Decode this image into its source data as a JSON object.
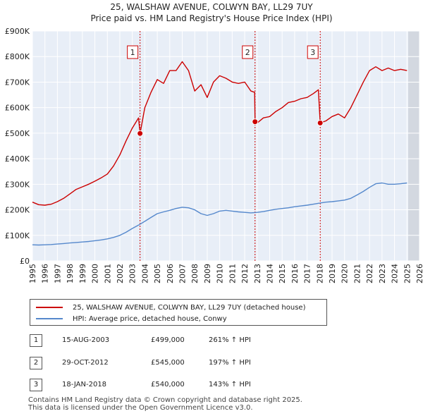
{
  "title": {
    "line1": "25, WALSHAW AVENUE, COLWYN BAY, LL29 7UY",
    "line2": "Price paid vs. HM Land Registry's House Price Index (HPI)"
  },
  "colors": {
    "property": "#cc0000",
    "hpi": "#5588cc",
    "shade": "#dce7f5",
    "grid": "#ffffff",
    "bg": "#e8eef7"
  },
  "chart_data": {
    "type": "line",
    "title": "Price paid vs. HM Land Registry's House Price Index (HPI)",
    "xlabel": "",
    "ylabel": "",
    "xlim": [
      1995,
      2026
    ],
    "ylim": [
      0,
      900000
    ],
    "x_ticks": [
      "1995",
      "1996",
      "1997",
      "1998",
      "1999",
      "2000",
      "2001",
      "2002",
      "2003",
      "2004",
      "2005",
      "2006",
      "2007",
      "2008",
      "2009",
      "2010",
      "2011",
      "2012",
      "2013",
      "2014",
      "2015",
      "2016",
      "2017",
      "2018",
      "2019",
      "2020",
      "2021",
      "2022",
      "2023",
      "2024",
      "2025",
      "2026"
    ],
    "y_ticks": [
      {
        "value": 0,
        "label": "£0"
      },
      {
        "value": 100000,
        "label": "£100K"
      },
      {
        "value": 200000,
        "label": "£200K"
      },
      {
        "value": 300000,
        "label": "£300K"
      },
      {
        "value": 400000,
        "label": "£400K"
      },
      {
        "value": 500000,
        "label": "£500K"
      },
      {
        "value": 600000,
        "label": "£600K"
      },
      {
        "value": 700000,
        "label": "£700K"
      },
      {
        "value": 800000,
        "label": "£800K"
      },
      {
        "value": 900000,
        "label": "£900K"
      }
    ],
    "forecast_start": 2025.1,
    "series": [
      {
        "name": "25, WALSHAW AVENUE, COLWYN BAY, LL29 7UY (detached house)",
        "color": "#cc0000",
        "x": [
          1995.0,
          1995.5,
          1996.0,
          1996.5,
          1997.0,
          1997.5,
          1998.0,
          1998.5,
          1999.0,
          1999.5,
          2000.0,
          2000.5,
          2001.0,
          2001.5,
          2002.0,
          2002.5,
          2003.0,
          2003.5,
          2003.62,
          2004.0,
          2004.5,
          2005.0,
          2005.5,
          2006.0,
          2006.5,
          2007.0,
          2007.5,
          2008.0,
          2008.5,
          2009.0,
          2009.5,
          2010.0,
          2010.5,
          2011.0,
          2011.5,
          2012.0,
          2012.5,
          2012.8,
          2012.83,
          2013.0,
          2013.5,
          2014.0,
          2014.5,
          2015.0,
          2015.5,
          2016.0,
          2016.5,
          2017.0,
          2017.5,
          2017.9,
          2018.05,
          2018.5,
          2019.0,
          2019.5,
          2020.0,
          2020.5,
          2021.0,
          2021.5,
          2022.0,
          2022.5,
          2023.0,
          2023.5,
          2024.0,
          2024.5,
          2025.0
        ],
        "values": [
          230000,
          220000,
          218000,
          222000,
          232000,
          245000,
          262000,
          280000,
          290000,
          300000,
          312000,
          325000,
          340000,
          372000,
          415000,
          470000,
          520000,
          560000,
          499000,
          600000,
          660000,
          710000,
          695000,
          745000,
          745000,
          780000,
          745000,
          665000,
          690000,
          640000,
          700000,
          725000,
          715000,
          700000,
          695000,
          700000,
          665000,
          660000,
          545000,
          540000,
          560000,
          565000,
          585000,
          600000,
          620000,
          625000,
          635000,
          640000,
          655000,
          670000,
          540000,
          548000,
          565000,
          575000,
          560000,
          600000,
          650000,
          700000,
          745000,
          760000,
          745000,
          755000,
          745000,
          750000,
          745000
        ]
      },
      {
        "name": "HPI: Average price, detached house, Conwy",
        "color": "#5588cc",
        "x": [
          1995.0,
          1995.5,
          1996.0,
          1996.5,
          1997.0,
          1997.5,
          1998.0,
          1998.5,
          1999.0,
          1999.5,
          2000.0,
          2000.5,
          2001.0,
          2001.5,
          2002.0,
          2002.5,
          2003.0,
          2003.5,
          2004.0,
          2004.5,
          2005.0,
          2005.5,
          2006.0,
          2006.5,
          2007.0,
          2007.5,
          2008.0,
          2008.5,
          2009.0,
          2009.5,
          2010.0,
          2010.5,
          2011.0,
          2011.5,
          2012.0,
          2012.5,
          2013.0,
          2013.5,
          2014.0,
          2014.5,
          2015.0,
          2015.5,
          2016.0,
          2016.5,
          2017.0,
          2017.5,
          2018.0,
          2018.5,
          2019.0,
          2019.5,
          2020.0,
          2020.5,
          2021.0,
          2021.5,
          2022.0,
          2022.5,
          2023.0,
          2023.5,
          2024.0,
          2024.5,
          2025.0
        ],
        "values": [
          63000,
          62000,
          63000,
          64000,
          66000,
          68000,
          70000,
          72000,
          74000,
          76000,
          79000,
          82000,
          86000,
          92000,
          100000,
          112000,
          127000,
          140000,
          155000,
          170000,
          185000,
          192000,
          198000,
          205000,
          210000,
          208000,
          200000,
          185000,
          178000,
          185000,
          195000,
          198000,
          195000,
          192000,
          190000,
          188000,
          190000,
          193000,
          198000,
          202000,
          205000,
          208000,
          212000,
          215000,
          218000,
          222000,
          226000,
          230000,
          232000,
          235000,
          238000,
          245000,
          258000,
          272000,
          288000,
          302000,
          305000,
          300000,
          300000,
          302000,
          305000
        ]
      }
    ],
    "sales": [
      {
        "label": "1",
        "x": 2003.62,
        "value": 499000
      },
      {
        "label": "2",
        "x": 2012.83,
        "value": 545000
      },
      {
        "label": "3",
        "x": 2018.05,
        "value": 540000
      }
    ]
  },
  "legend": {
    "property": "25, WALSHAW AVENUE, COLWYN BAY, LL29 7UY (detached house)",
    "hpi": "HPI: Average price, detached house, Conwy"
  },
  "transactions": [
    {
      "num": "1",
      "date": "15-AUG-2003",
      "price": "£499,000",
      "hpi": "261% ↑ HPI"
    },
    {
      "num": "2",
      "date": "29-OCT-2012",
      "price": "£545,000",
      "hpi": "197% ↑ HPI"
    },
    {
      "num": "3",
      "date": "18-JAN-2018",
      "price": "£540,000",
      "hpi": "143% ↑ HPI"
    }
  ],
  "footer": {
    "line1": "Contains HM Land Registry data © Crown copyright and database right 2025.",
    "line2": "This data is licensed under the Open Government Licence v3.0."
  }
}
